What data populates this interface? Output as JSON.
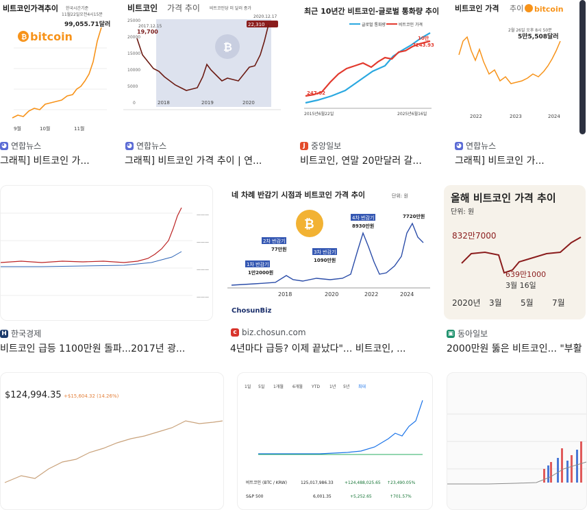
{
  "results": [
    {
      "source": "연합뉴스",
      "caption": "그래픽] 비트코인 가...",
      "heading": "비트코인가격추이",
      "brand": "bitcoin",
      "price": "99,055.71달러",
      "note1": "한국시간기준",
      "note2": "11월22일오전4시15분",
      "xt": [
        "9월",
        "10월",
        "11월"
      ],
      "fav_color": "#5b6bd5"
    },
    {
      "source": "연합뉴스",
      "caption": "그래픽] 비트코인 가격 추이 | 연...",
      "heading": "비트코인",
      "heading2": "가격 추이",
      "sub": "비트코인당 미 달러 종가",
      "d1": "2020.12.17",
      "v1": "22,310",
      "d0": "2017.12.15",
      "v0": "19,700",
      "xt": [
        "2018",
        "2019",
        "2020"
      ],
      "yt": [
        "25000",
        "20000",
        "15000",
        "10000",
        "5000",
        "0"
      ],
      "fav_color": "#5b6bd5"
    },
    {
      "source": "중앙일보",
      "caption": "비트코인, 연말 20만달러 갈...",
      "heading": "최근 10년간 비트코인-글로벌 통화량 추이",
      "l1": "글로벌 통화량",
      "l2": "비트코인 가격",
      "top": "10만",
      "topv": "7243.93",
      "start": "247.02",
      "d0": "2015년6월22일",
      "d1": "2025년6월16일",
      "fav_color": "#e34b2b"
    },
    {
      "source": "연합뉴스",
      "caption": "그래픽] 비트코인 가...",
      "heading": "비트코인 가격",
      "heading2": "추이",
      "brand": "bitcoin",
      "price": "5만5,508달러",
      "note": "2월 26일 오후 8시 50분",
      "xt": [
        "2022",
        "2023",
        "2024"
      ],
      "fav_color": "#5b6bd5"
    },
    {
      "source": "한국경제",
      "caption": "비트코인 급등 1100만원 돌파...2017년 광...",
      "fav_color": "#1b3a6b"
    },
    {
      "source": "biz.chosun.com",
      "caption": "4년마다 급등? 이제 끝났다\"... 비트코인, ...",
      "heading": "네 차례 반감기 시점과 비트코인 가격 추이",
      "unit": "단위: 원",
      "h1": "1차 반감기",
      "h1v": "1만2000원",
      "h2": "2차 반감기",
      "h2v": "77만원",
      "h3": "3차 반감기",
      "h3v": "1090만원",
      "h4": "4차 반감기",
      "h4v": "8930만원",
      "last": "7720만원",
      "xt": [
        "2018",
        "2020",
        "2022",
        "2024"
      ],
      "logo": "ChosunBiz",
      "fav_color": "#d8342c"
    },
    {
      "source": "동아일보",
      "caption": "2000만원 뚫은 비트코인... \"부활",
      "heading": "올해 비트코인 가격 추이",
      "unit": "단위: 원",
      "v0": "832만7000",
      "vmin": "639만1000",
      "dmin": "3월 16일",
      "xt": [
        "2020년",
        "3월",
        "5월",
        "7월"
      ],
      "fav_color": "#1a8f6a"
    },
    {
      "source": "",
      "caption": "",
      "price": "$124,994.35",
      "change": "+$15,604.32 (14.26%)"
    },
    {
      "source": "",
      "caption": "",
      "tabs": [
        "1일",
        "5일",
        "1개월",
        "6개월",
        "YTD",
        "1년",
        "5년",
        "최대"
      ],
      "row1": [
        "비트코인 (BTC / KRW)",
        "125,017,986.33",
        "+124,488,025.65",
        "↑23,490.05%"
      ],
      "row2": [
        "S&P 500",
        "6,001.35",
        "+5,252.65",
        "↑701.57%"
      ]
    },
    {
      "source": "",
      "caption": ""
    }
  ]
}
